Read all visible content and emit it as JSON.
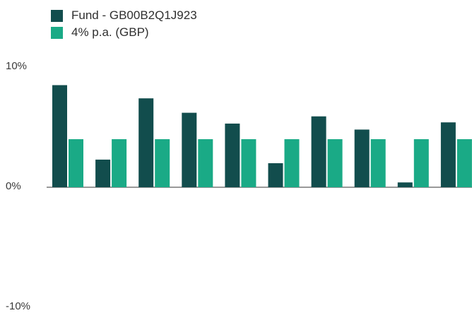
{
  "chart_data": {
    "type": "bar",
    "title": "",
    "xlabel": "",
    "ylabel": "",
    "categories": [
      "",
      "",
      "",
      "",
      "",
      "",
      "",
      "",
      "",
      ""
    ],
    "series": [
      {
        "name": "Fund - GB00B2Q1J923",
        "color": "#124d4d",
        "values": [
          8.5,
          2.3,
          7.4,
          6.2,
          5.3,
          2.0,
          5.9,
          4.8,
          0.4,
          5.4
        ]
      },
      {
        "name": "4% p.a. (GBP)",
        "color": "#1aaa86",
        "values": [
          4.0,
          4.0,
          4.0,
          4.0,
          4.0,
          4.0,
          4.0,
          4.0,
          4.0,
          4.0
        ]
      }
    ],
    "ylim": [
      -10,
      10
    ],
    "yticks": [
      {
        "value": 10,
        "label": "10%"
      },
      {
        "value": 0,
        "label": "0%"
      },
      {
        "value": -10,
        "label": "-10%"
      }
    ],
    "legend": "top-left",
    "grid": false
  }
}
